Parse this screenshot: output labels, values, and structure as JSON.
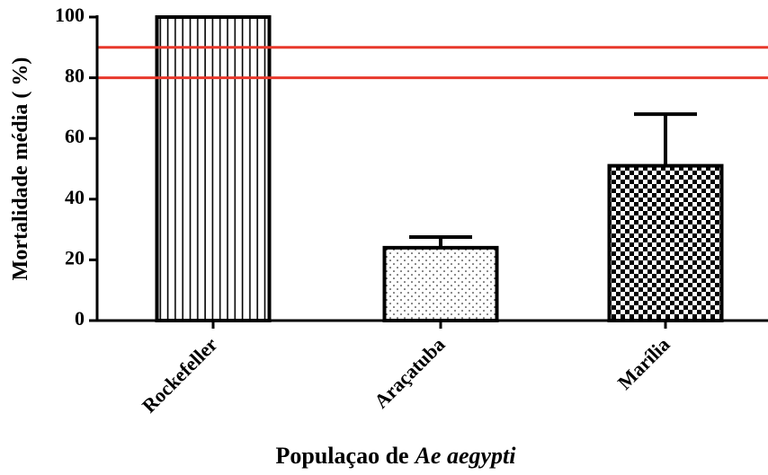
{
  "chart_data": {
    "type": "bar",
    "y_label": "Mortalidade média ( %)",
    "x_label": [
      "Populaçao de",
      "Ae aegypti"
    ],
    "categories": [
      "Rockefeller",
      "Araçatuba",
      "Marília"
    ],
    "values": [
      100,
      24,
      51
    ],
    "errors": [
      null,
      3.5,
      17
    ],
    "patterns": [
      "vertical-lines",
      "dots",
      "checker"
    ],
    "color": "#000000",
    "reference_lines": [
      80,
      90
    ],
    "reference_color": "#e8382b",
    "ylim": [
      0,
      100
    ],
    "yticks": [
      0,
      20,
      40,
      60,
      80,
      100
    ],
    "grid": false
  }
}
